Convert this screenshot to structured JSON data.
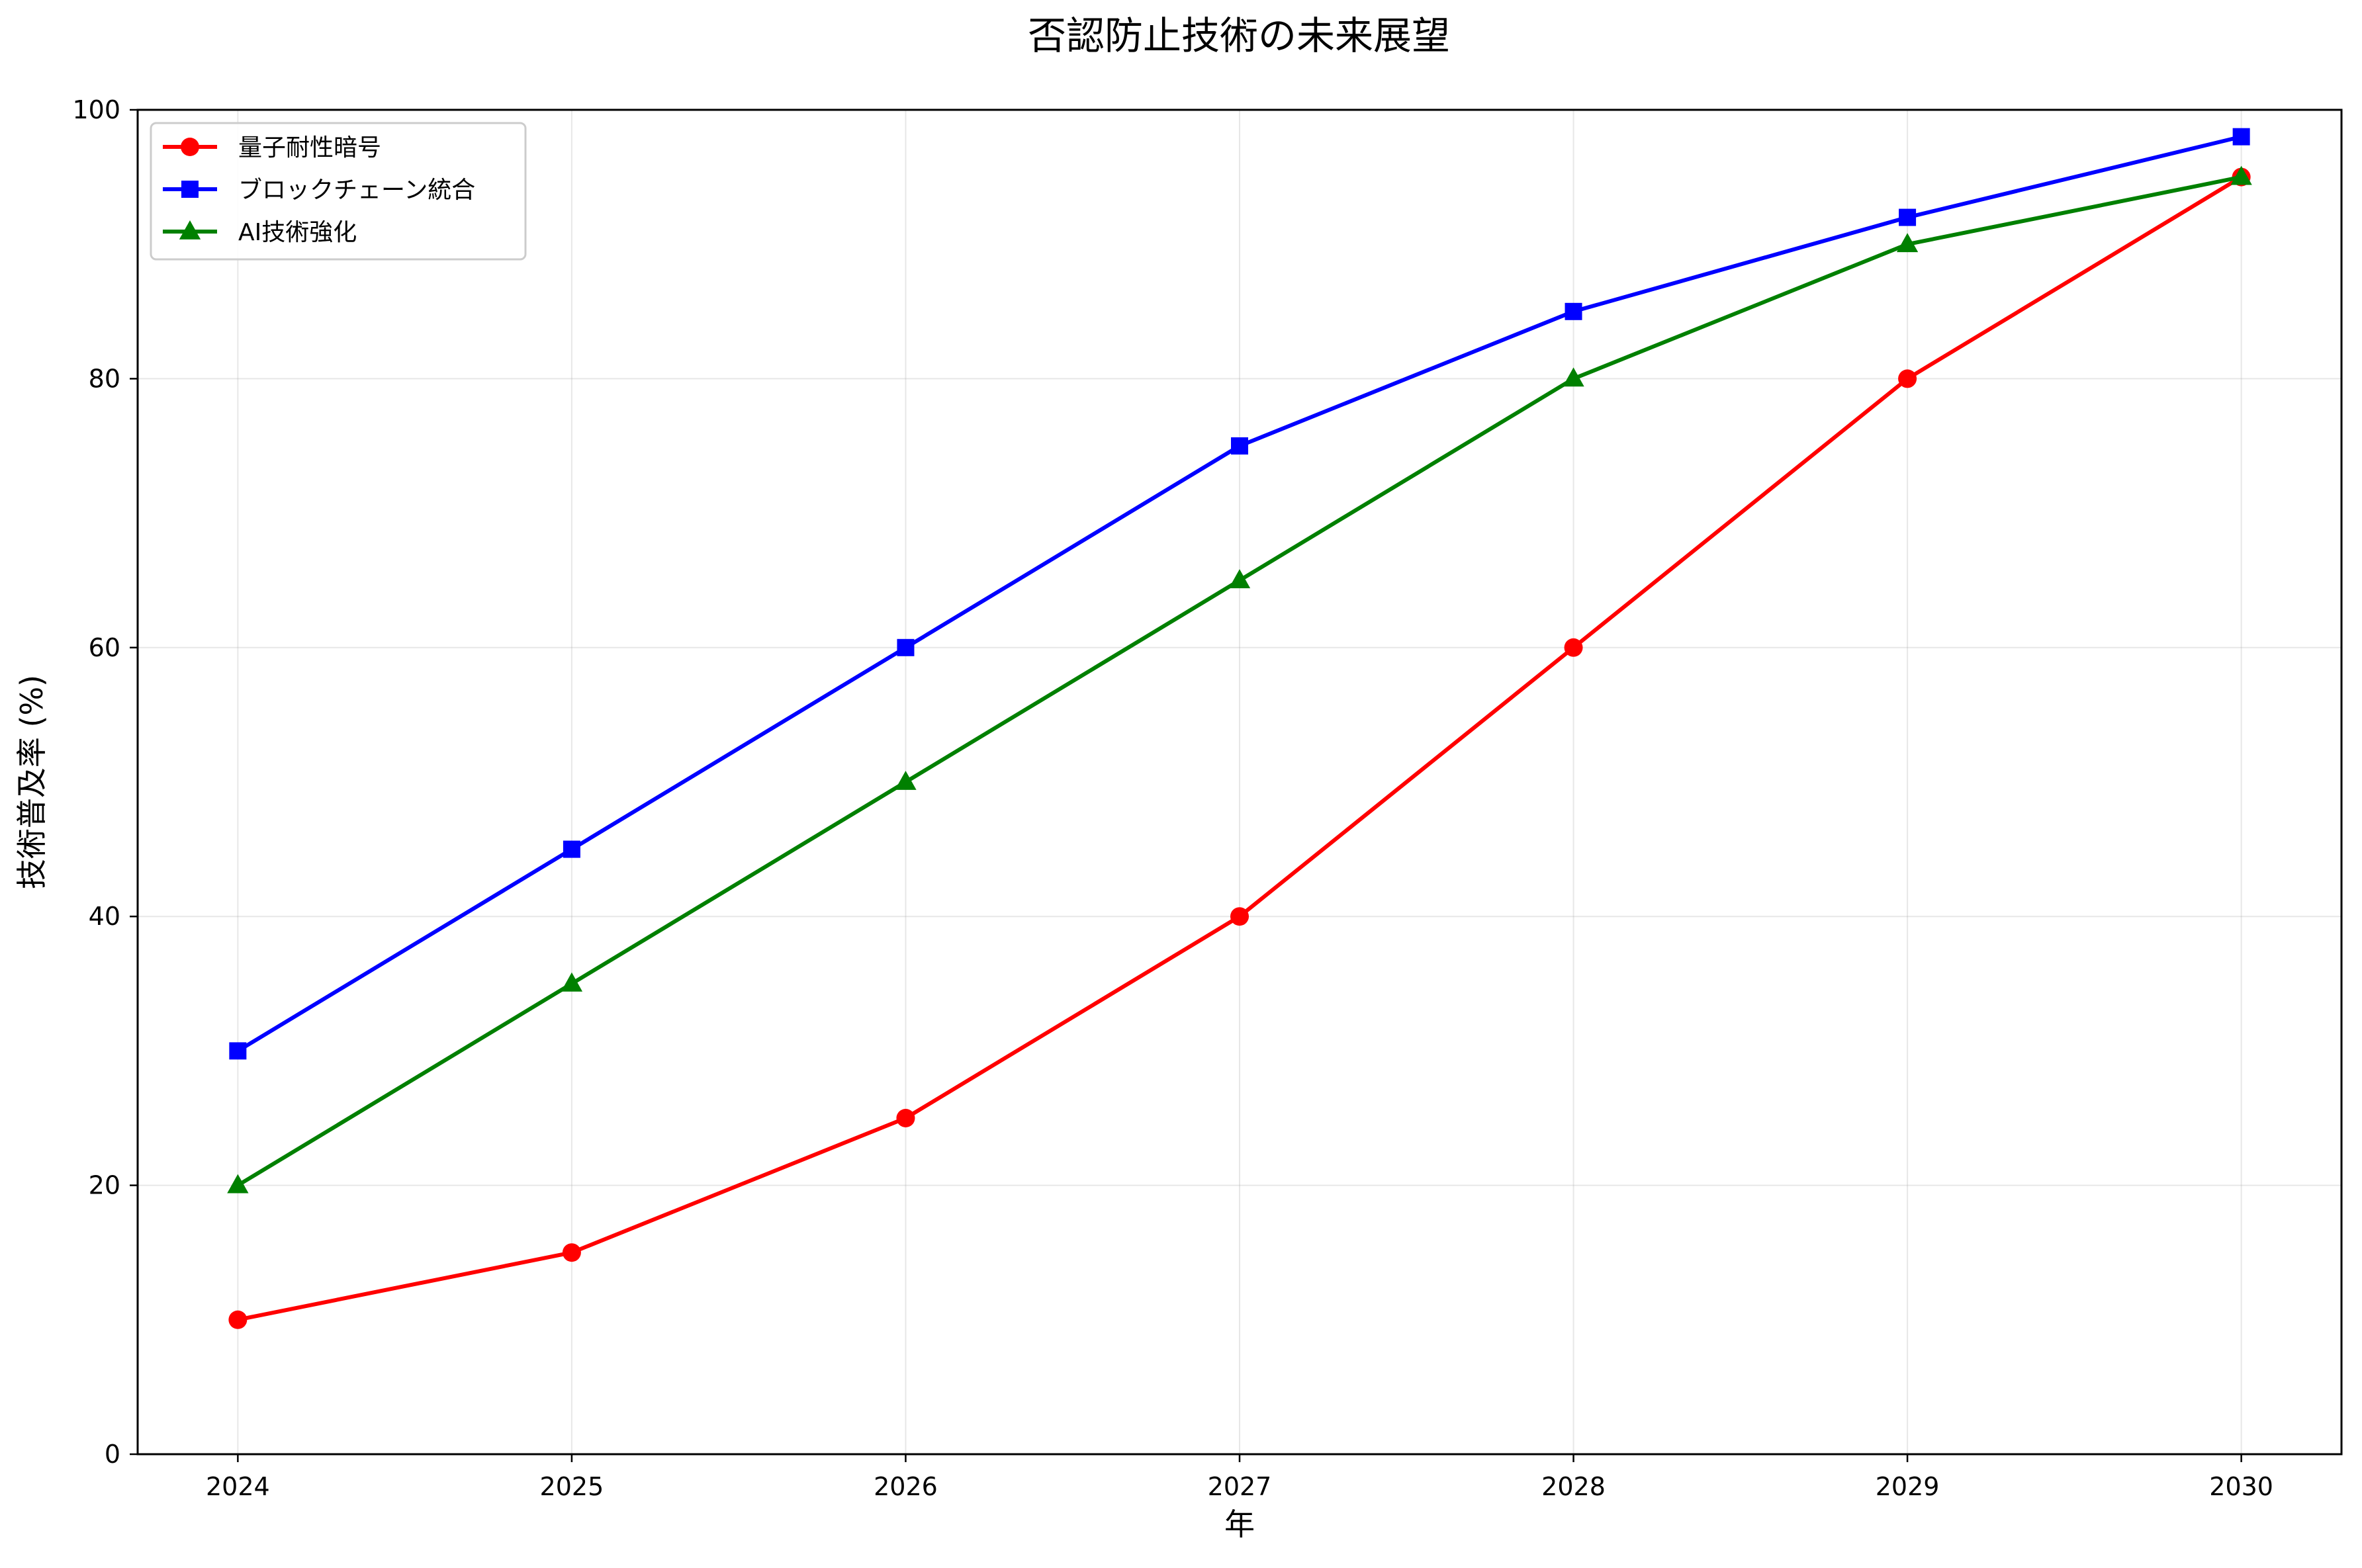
{
  "chart_data": {
    "type": "line",
    "title": "否認防止技術の未来展望",
    "xlabel": "年",
    "ylabel": "技術普及率 (%)",
    "categories": [
      "2024",
      "2025",
      "2026",
      "2027",
      "2028",
      "2029",
      "2030"
    ],
    "x_range": [
      2023.7,
      2030.3
    ],
    "ylim": [
      0,
      100
    ],
    "yticks": [
      0,
      20,
      40,
      60,
      80,
      100
    ],
    "grid": true,
    "legend_position": "top-left",
    "series": [
      {
        "name": "量子耐性暗号",
        "color": "#ff0000",
        "marker": "circle",
        "values": [
          10,
          15,
          25,
          40,
          60,
          80,
          95
        ]
      },
      {
        "name": "ブロックチェーン統合",
        "color": "#0000ff",
        "marker": "square",
        "values": [
          30,
          45,
          60,
          75,
          85,
          92,
          98
        ]
      },
      {
        "name": "AI技術強化",
        "color": "#008000",
        "marker": "triangle",
        "values": [
          20,
          35,
          50,
          65,
          80,
          90,
          95
        ]
      }
    ]
  }
}
